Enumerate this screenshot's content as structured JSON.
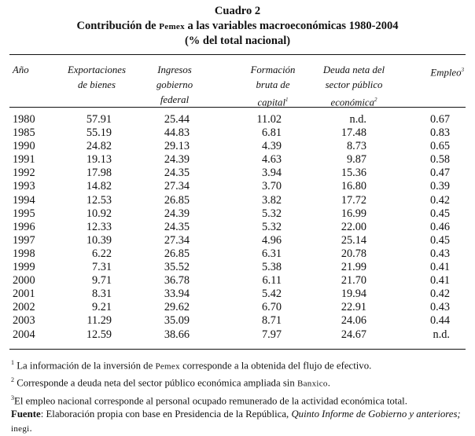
{
  "caption": {
    "number": "Cuadro 2",
    "title_before": "Contribución de ",
    "title_pemex": "Pemex",
    "title_after": " a las variables macroeconómicas 1980-2004",
    "subtitle": "(% del total nacional)"
  },
  "headers": {
    "col0": "Año",
    "col1_l1": "Exportaciones",
    "col1_l2": "de bienes",
    "col2_l1": "Ingresos",
    "col2_l2": "gobierno",
    "col2_l3": "federal",
    "col3_l1": "Formación",
    "col3_l2": "bruta de",
    "col3_l3": "capital",
    "col3_sup": "1",
    "col4_l1": "Deuda neta del",
    "col4_l2": "sector público",
    "col4_l3": "económica",
    "col4_sup": "2",
    "col5_l1": "Empleo",
    "col5_sup": "3"
  },
  "rows": [
    {
      "year": "1980",
      "exportaciones": "57.91",
      "ingresos": "25.44",
      "formacion": "11.02",
      "deuda": "n.d.",
      "empleo": "0.67"
    },
    {
      "year": "1985",
      "exportaciones": "55.19",
      "ingresos": "44.83",
      "formacion": "6.81",
      "deuda": "17.48",
      "empleo": "0.83"
    },
    {
      "year": "1990",
      "exportaciones": "24.82",
      "ingresos": "29.13",
      "formacion": "4.39",
      "deuda": "8.73",
      "empleo": "0.65"
    },
    {
      "year": "1991",
      "exportaciones": "19.13",
      "ingresos": "24.39",
      "formacion": "4.63",
      "deuda": "9.87",
      "empleo": "0.58"
    },
    {
      "year": "1992",
      "exportaciones": "17.98",
      "ingresos": "24.35",
      "formacion": "3.94",
      "deuda": "15.36",
      "empleo": "0.47"
    },
    {
      "year": "1993",
      "exportaciones": "14.82",
      "ingresos": "27.34",
      "formacion": "3.70",
      "deuda": "16.80",
      "empleo": "0.39"
    },
    {
      "year": "1994",
      "exportaciones": "12.53",
      "ingresos": "26.85",
      "formacion": "3.82",
      "deuda": "17.72",
      "empleo": "0.42"
    },
    {
      "year": "1995",
      "exportaciones": "10.92",
      "ingresos": "24.39",
      "formacion": "5.32",
      "deuda": "16.99",
      "empleo": "0.45"
    },
    {
      "year": "1996",
      "exportaciones": "12.33",
      "ingresos": "24.35",
      "formacion": "5.32",
      "deuda": "22.00",
      "empleo": "0.46"
    },
    {
      "year": "1997",
      "exportaciones": "10.39",
      "ingresos": "27.34",
      "formacion": "4.96",
      "deuda": "25.14",
      "empleo": "0.45"
    },
    {
      "year": "1998",
      "exportaciones": "6.22",
      "ingresos": "26.85",
      "formacion": "6.31",
      "deuda": "20.78",
      "empleo": "0.43"
    },
    {
      "year": "1999",
      "exportaciones": "7.31",
      "ingresos": "35.52",
      "formacion": "5.38",
      "deuda": "21.99",
      "empleo": "0.41"
    },
    {
      "year": "2000",
      "exportaciones": "9.71",
      "ingresos": "36.78",
      "formacion": "6.11",
      "deuda": "21.70",
      "empleo": "0.41"
    },
    {
      "year": "2001",
      "exportaciones": "8.31",
      "ingresos": "33.94",
      "formacion": "5.42",
      "deuda": "19.94",
      "empleo": "0.42"
    },
    {
      "year": "2002",
      "exportaciones": "9.21",
      "ingresos": "29.62",
      "formacion": "6.70",
      "deuda": "22.91",
      "empleo": "0.43"
    },
    {
      "year": "2003",
      "exportaciones": "11.29",
      "ingresos": "35.09",
      "formacion": "8.71",
      "deuda": "24.06",
      "empleo": "0.44"
    },
    {
      "year": "2004",
      "exportaciones": "12.59",
      "ingresos": "38.66",
      "formacion": "7.97",
      "deuda": "24.67",
      "empleo": "n.d."
    }
  ],
  "notes": {
    "n1_mark": "1",
    "n1_before": " La información de la inversión de ",
    "n1_pemex": "Pemex",
    "n1_after": " corresponde a la obtenida del flujo de efectivo.",
    "n2_mark": "2",
    "n2_before": " Corresponde a deuda neta del sector público económica  ampliada sin ",
    "n2_banxico": "Banxico",
    "n2_after": ".",
    "n3_mark": "3",
    "n3_text": "El empleo nacional corresponde al personal ocupado remunerado de la actividad económica total.",
    "fuente_label": "Fuente",
    "fuente_before": ": Elaboración propia con base en Presidencia de la República, ",
    "fuente_italic": "Quinto Informe de Gobierno y anteriores;",
    "fuente_inegi": "inegi",
    "fuente_after": "."
  }
}
